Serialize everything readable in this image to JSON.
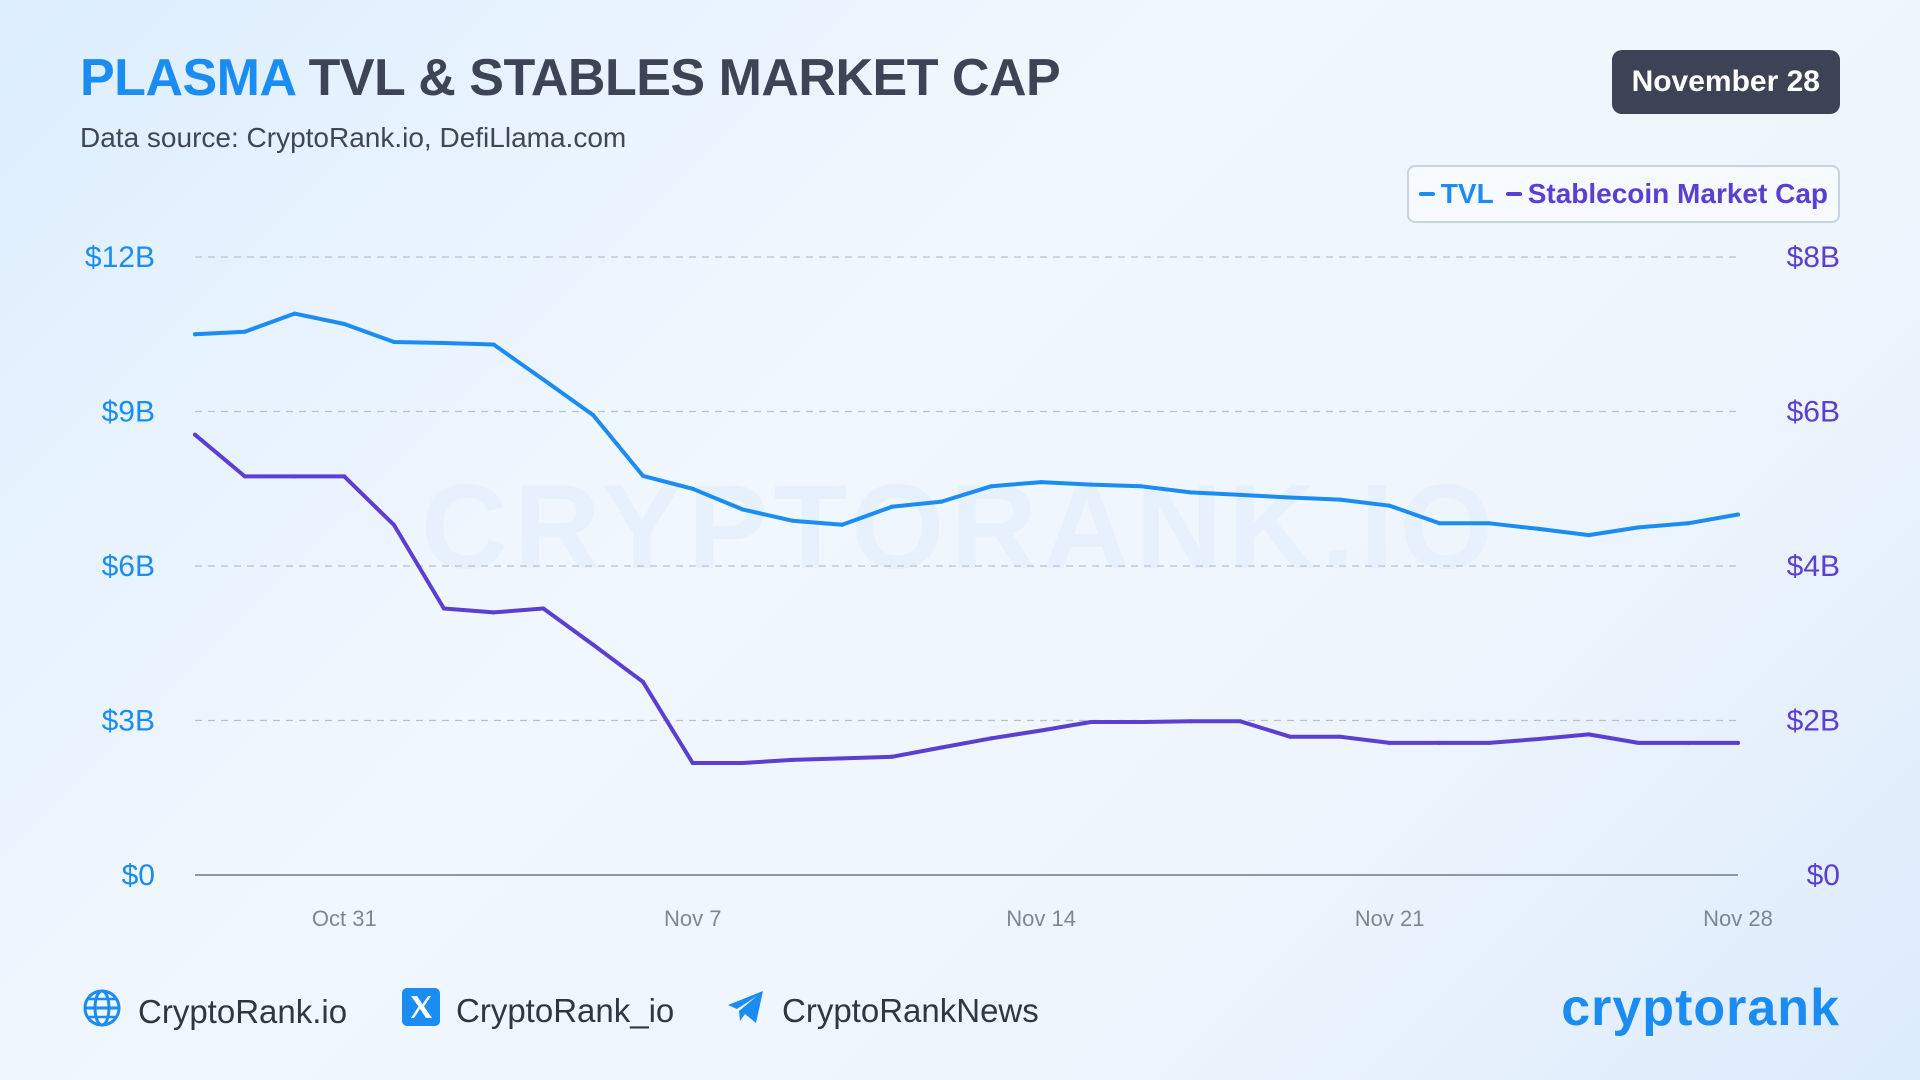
{
  "header": {
    "title_accent": "PLASMA",
    "title_rest": " TVL & STABLES MARKET CAP",
    "subtitle": "Data source: CryptoRank.io, DefiLlama.com",
    "date_badge": "November 28"
  },
  "watermark": "CRYPTORANK.IO",
  "colors": {
    "tvl": "#1a8cf2",
    "stables": "#5b3fd1",
    "dark": "#3b4354",
    "grid": "#b9c2cc",
    "axis": "#8f99a6"
  },
  "chart_data": {
    "type": "line",
    "x": [
      "Oct 28",
      "Oct 29",
      "Oct 30",
      "Oct 31",
      "Nov 1",
      "Nov 2",
      "Nov 3",
      "Nov 4",
      "Nov 5",
      "Nov 6",
      "Nov 7",
      "Nov 8",
      "Nov 9",
      "Nov 10",
      "Nov 11",
      "Nov 12",
      "Nov 13",
      "Nov 14",
      "Nov 15",
      "Nov 16",
      "Nov 17",
      "Nov 18",
      "Nov 19",
      "Nov 20",
      "Nov 21",
      "Nov 22",
      "Nov 23",
      "Nov 24",
      "Nov 25",
      "Nov 26",
      "Nov 27",
      "Nov 28"
    ],
    "x_ticks": [
      "Oct 31",
      "Nov 7",
      "Nov 14",
      "Nov 21",
      "Nov 28"
    ],
    "series": [
      {
        "name": "TVL",
        "axis": "left",
        "values": [
          10.5,
          10.55,
          10.9,
          10.7,
          10.35,
          10.33,
          10.3,
          9.62,
          8.93,
          7.75,
          7.5,
          7.1,
          6.88,
          6.8,
          7.15,
          7.25,
          7.55,
          7.63,
          7.58,
          7.55,
          7.43,
          7.38,
          7.33,
          7.29,
          7.17,
          6.83,
          6.83,
          6.72,
          6.6,
          6.75,
          6.83,
          7.0
        ]
      },
      {
        "name": "Stablecoin Market Cap",
        "axis": "right",
        "values": [
          5.7,
          5.16,
          5.16,
          5.16,
          4.53,
          3.45,
          3.4,
          3.45,
          2.98,
          2.5,
          1.45,
          1.45,
          1.49,
          1.51,
          1.53,
          1.65,
          1.77,
          1.87,
          1.98,
          1.98,
          1.99,
          1.99,
          1.79,
          1.79,
          1.71,
          1.71,
          1.71,
          1.76,
          1.82,
          1.71,
          1.71,
          1.71
        ]
      }
    ],
    "y_left": {
      "min": 0,
      "max": 12,
      "ticks": [
        0,
        3,
        6,
        9,
        12
      ],
      "tick_labels": [
        "$0",
        "$3B",
        "$6B",
        "$9B",
        "$12B"
      ]
    },
    "y_right": {
      "min": 0,
      "max": 8,
      "ticks": [
        0,
        2,
        4,
        6,
        8
      ],
      "tick_labels": [
        "$0",
        "$2B",
        "$4B",
        "$6B",
        "$8B"
      ]
    },
    "grid": true,
    "legend_position": "top-right"
  },
  "footer": {
    "website": "CryptoRank.io",
    "x_handle": "CryptoRank_io",
    "telegram": "CryptoRankNews",
    "brand": "cryptorank"
  }
}
